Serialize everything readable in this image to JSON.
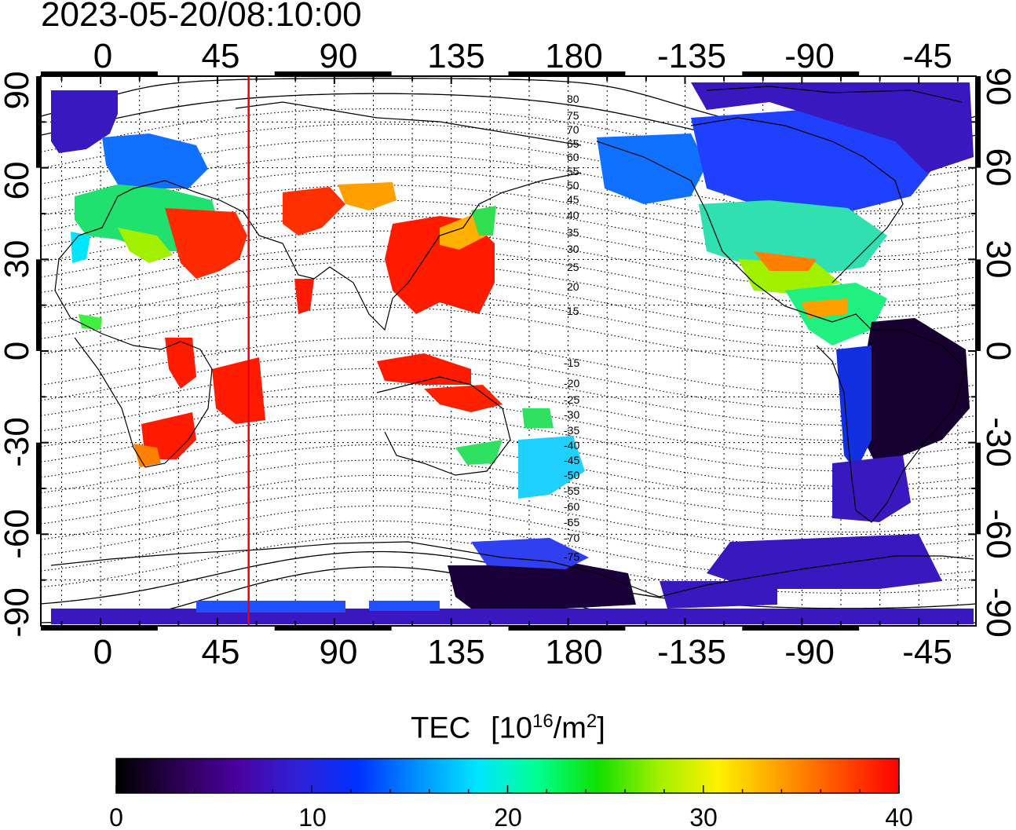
{
  "timestamp": "2023-05-20/08:10:00",
  "map": {
    "lon_tick_labels": [
      "0",
      "45",
      "90",
      "135",
      "180",
      "-135",
      "-90",
      "-45"
    ],
    "lat_tick_labels_left": [
      "90",
      "60",
      "30",
      "0",
      "-30",
      "-60",
      "-90"
    ],
    "lat_tick_labels_right": [
      "90",
      "60",
      "30",
      "0",
      "-30",
      "-60",
      "-90"
    ],
    "terminator_longitude": 57,
    "terminator_color": "#e8000b",
    "contour_labels_north": [
      "80",
      "75",
      "70",
      "65",
      "60",
      "55",
      "50",
      "45",
      "40",
      "35",
      "30",
      "25",
      "20",
      "15"
    ],
    "contour_labels_south": [
      "-15",
      "-20",
      "-25",
      "-30",
      "-35",
      "-40",
      "-45",
      "-50",
      "-55",
      "-60",
      "-65",
      "-70",
      "-75"
    ]
  },
  "colorbar": {
    "title": "TEC",
    "unit_base": "[10",
    "unit_exp": "16",
    "unit_mid": "/m",
    "unit_exp2": "2",
    "unit_close": "]",
    "min": 0,
    "max": 40,
    "tick_labels": [
      "0",
      "10",
      "20",
      "30",
      "40"
    ],
    "colors": [
      "#000000",
      "#2a0050",
      "#4a00a0",
      "#3020d8",
      "#0030ff",
      "#0090ff",
      "#00e6ff",
      "#00ff90",
      "#10e000",
      "#a0f000",
      "#fff000",
      "#ffa000",
      "#ff5000",
      "#ff0000"
    ]
  }
}
